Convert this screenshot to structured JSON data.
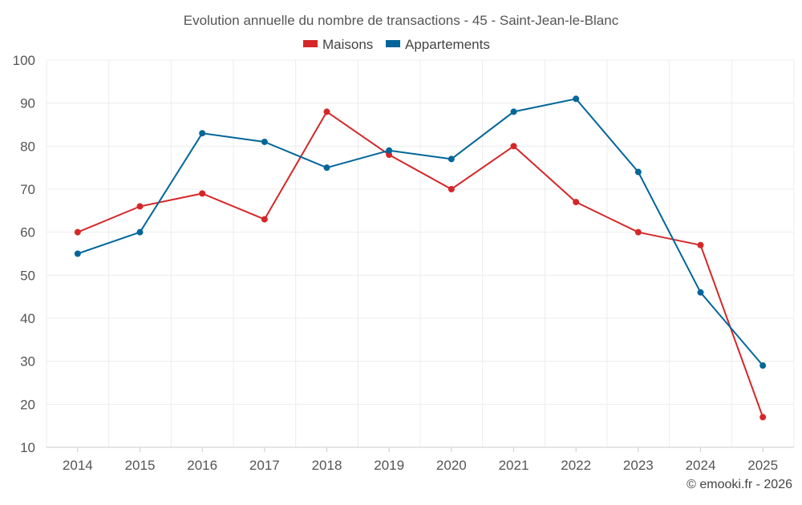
{
  "chart_data": {
    "type": "line",
    "title": "Evolution annuelle du nombre de transactions - 45 - Saint-Jean-le-Blanc",
    "xlabel": "",
    "ylabel": "",
    "categories": [
      "2014",
      "2015",
      "2016",
      "2017",
      "2018",
      "2019",
      "2020",
      "2021",
      "2022",
      "2023",
      "2024",
      "2025"
    ],
    "ylim": [
      10,
      100
    ],
    "yticks": [
      10,
      20,
      30,
      40,
      50,
      60,
      70,
      80,
      90,
      100
    ],
    "grid": true,
    "legend_position": "top-center",
    "series": [
      {
        "name": "Maisons",
        "color": "#d62728",
        "values": [
          60,
          66,
          69,
          63,
          88,
          78,
          70,
          80,
          67,
          60,
          57,
          17
        ]
      },
      {
        "name": "Appartements",
        "color": "#006699",
        "values": [
          55,
          60,
          83,
          81,
          75,
          79,
          77,
          88,
          91,
          74,
          46,
          29
        ]
      }
    ]
  },
  "credit": "© emooki.fr - 2026"
}
